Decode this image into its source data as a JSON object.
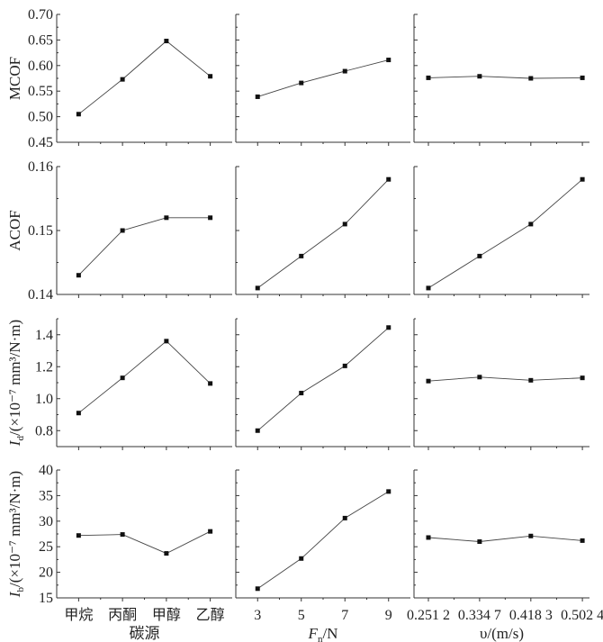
{
  "chart_data": {
    "type": "line",
    "layout": "4 rows x 3 columns grid of panels, shared y-axis per row, shared x-axis per column",
    "columns": [
      {
        "xlabel": {
          "main": "碳源"
        },
        "x_type": "category",
        "categories": [
          "甲烷",
          "丙酮",
          "甲醇",
          "乙醇"
        ],
        "x": [
          0,
          1,
          2,
          3
        ],
        "xlim": [
          -0.5,
          3.5
        ],
        "tick_labels": [
          "甲烷",
          "丙酮",
          "甲醇",
          "乙醇"
        ]
      },
      {
        "xlabel": {
          "main": "F",
          "sub": "n",
          "rest": "/N"
        },
        "x_type": "numeric",
        "x": [
          3,
          5,
          7,
          9
        ],
        "xlim": [
          2,
          10
        ],
        "tick_labels": [
          "3",
          "5",
          "7",
          "9"
        ]
      },
      {
        "xlabel": {
          "main": "υ/(m/s)"
        },
        "x_type": "numeric",
        "x": [
          0.2512,
          0.3347,
          0.4183,
          0.5024
        ],
        "xlim": [
          0.2277,
          0.514
        ],
        "tick_labels": [
          "0.251 2",
          "0.334 7",
          "0.418 3",
          "0.502 4"
        ]
      }
    ],
    "rows": [
      {
        "ylabel": {
          "main": "MCOF"
        },
        "ylim": [
          0.45,
          0.7
        ],
        "yticks": [
          0.45,
          0.5,
          0.55,
          0.6,
          0.65,
          0.7
        ],
        "ytick_labels": [
          "0.45",
          "0.50",
          "0.55",
          "0.60",
          "0.65",
          "0.70"
        ],
        "series": [
          [
            0.505,
            0.573,
            0.648,
            0.579
          ],
          [
            0.539,
            0.566,
            0.589,
            0.611
          ],
          [
            0.576,
            0.579,
            0.575,
            0.576
          ]
        ]
      },
      {
        "ylabel": {
          "main": "ACOF"
        },
        "ylim": [
          0.14,
          0.16
        ],
        "yticks": [
          0.14,
          0.15,
          0.16
        ],
        "ytick_labels": [
          "0.14",
          "0.15",
          "0.16"
        ],
        "series": [
          [
            0.143,
            0.15,
            0.152,
            0.152
          ],
          [
            0.141,
            0.146,
            0.151,
            0.158
          ],
          [
            0.141,
            0.146,
            0.151,
            0.158
          ]
        ]
      },
      {
        "ylabel": {
          "main": "I",
          "sub": "d",
          "rest": "/(×10⁻⁷ mm³/N·m)"
        },
        "ylim": [
          0.7,
          1.5
        ],
        "yticks": [
          0.8,
          1.0,
          1.2,
          1.4
        ],
        "ytick_labels": [
          "0.8",
          "1.0",
          "1.2",
          "1.4"
        ],
        "series": [
          [
            0.91,
            1.13,
            1.36,
            1.095
          ],
          [
            0.8,
            1.035,
            1.205,
            1.445
          ],
          [
            1.11,
            1.135,
            1.115,
            1.13
          ]
        ]
      },
      {
        "ylabel": {
          "main": "I",
          "sub": "b",
          "rest": "/(×10⁻⁷ mm³/N·m)"
        },
        "ylim": [
          15,
          40
        ],
        "yticks": [
          15,
          20,
          25,
          30,
          35,
          40
        ],
        "ytick_labels": [
          "15",
          "20",
          "25",
          "30",
          "35",
          "40"
        ],
        "series": [
          [
            27.2,
            27.4,
            23.7,
            28.0
          ],
          [
            16.8,
            22.7,
            30.6,
            35.8
          ],
          [
            26.8,
            26.0,
            27.1,
            26.2
          ]
        ]
      }
    ],
    "grid": false,
    "legend": "none"
  }
}
